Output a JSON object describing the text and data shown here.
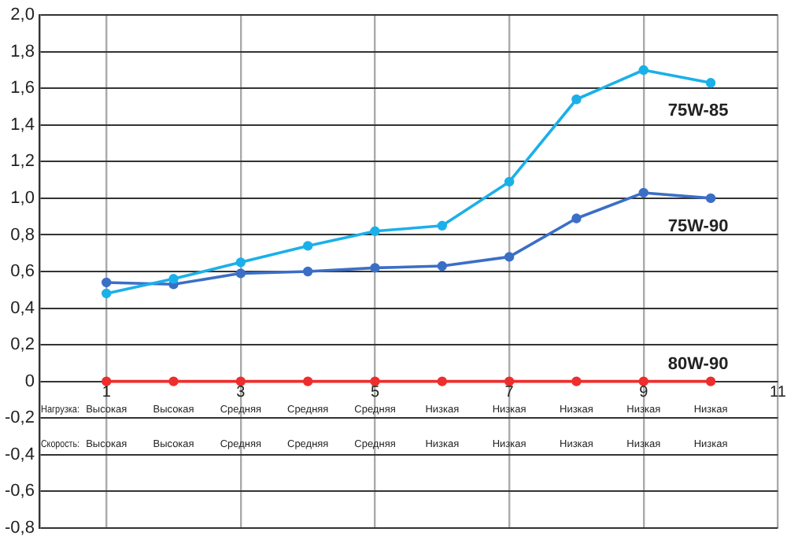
{
  "chart_data": {
    "type": "line",
    "x": [
      1,
      2,
      3,
      4,
      5,
      6,
      7,
      8,
      9,
      10
    ],
    "series": [
      {
        "name": "75W-85",
        "color": "#1ab0ea",
        "values": [
          0.48,
          0.56,
          0.65,
          0.74,
          0.82,
          0.85,
          1.09,
          1.54,
          1.7,
          1.63
        ]
      },
      {
        "name": "75W-90",
        "color": "#3b6fc6",
        "values": [
          0.54,
          0.53,
          0.59,
          0.6,
          0.62,
          0.63,
          0.68,
          0.89,
          1.03,
          1.0
        ]
      },
      {
        "name": "80W-90",
        "color": "#ee2d2d",
        "values": [
          0,
          0,
          0,
          0,
          0,
          0,
          0,
          0,
          0,
          0
        ]
      }
    ],
    "xlim": [
      0,
      11
    ],
    "xticks": [
      1,
      3,
      5,
      7,
      9,
      11
    ],
    "ylim": [
      -0.8,
      2.0
    ],
    "yticks": [
      {
        "value": -0.8,
        "label": "-0,8"
      },
      {
        "value": -0.6,
        "label": "-0,6"
      },
      {
        "value": -0.4,
        "label": "-0,4"
      },
      {
        "value": -0.2,
        "label": "-0,2"
      },
      0,
      {
        "value": 0.2,
        "label": "0,2"
      },
      {
        "value": 0.4,
        "label": "0,4"
      },
      {
        "value": 0.6,
        "label": "0,6"
      },
      {
        "value": 0.8,
        "label": "0,8"
      },
      {
        "value": 1.0,
        "label": "1,0"
      },
      {
        "value": 1.2,
        "label": "1,2"
      },
      {
        "value": 1.4,
        "label": "1,4"
      },
      {
        "value": 1.6,
        "label": "1,6"
      },
      {
        "value": 1.8,
        "label": "1,8"
      },
      {
        "value": 2.0,
        "label": "2,0"
      }
    ],
    "grid": true,
    "legend": false,
    "marker": "circle",
    "line_style": "solid",
    "annotations": [
      "Нагрузка:",
      "Высокая",
      "Высокая",
      "Средняя",
      "Средняя",
      "Средняя",
      "Низкая",
      "Низкая",
      "Низкая",
      "Низкая",
      "Низкая",
      "Скорость:",
      "Высокая",
      "Высокая",
      "Средняя",
      "Средняя",
      "Средняя",
      "Низкая",
      "Низкая",
      "Низкая",
      "Низкая",
      "Низкая"
    ]
  }
}
